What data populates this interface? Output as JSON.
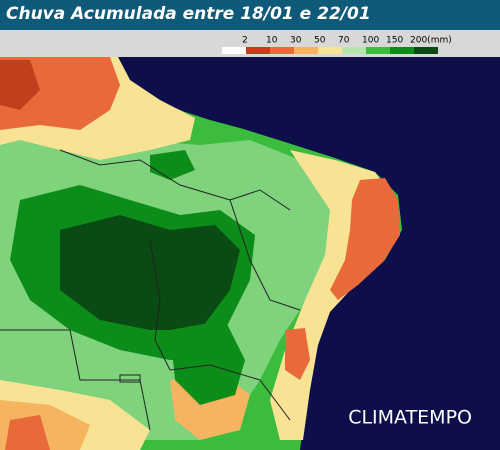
{
  "header": {
    "title": "Chuva Acumulada entre 18/01 e 22/01"
  },
  "legend": {
    "items": [
      {
        "label": "2",
        "color": "#ffffff"
      },
      {
        "label": "10",
        "color": "#c0401c"
      },
      {
        "label": "30",
        "color": "#e86a3a"
      },
      {
        "label": "50",
        "color": "#f6b460"
      },
      {
        "label": "70",
        "color": "#f8e394"
      },
      {
        "label": "100",
        "color": "#b4e6b0"
      },
      {
        "label": "150",
        "color": "#3cbc3c"
      },
      {
        "label": "200(mm)",
        "color": "#0c8c18"
      }
    ],
    "last_color": "#0a4a14"
  },
  "brand": "CLIMATEMPO"
}
